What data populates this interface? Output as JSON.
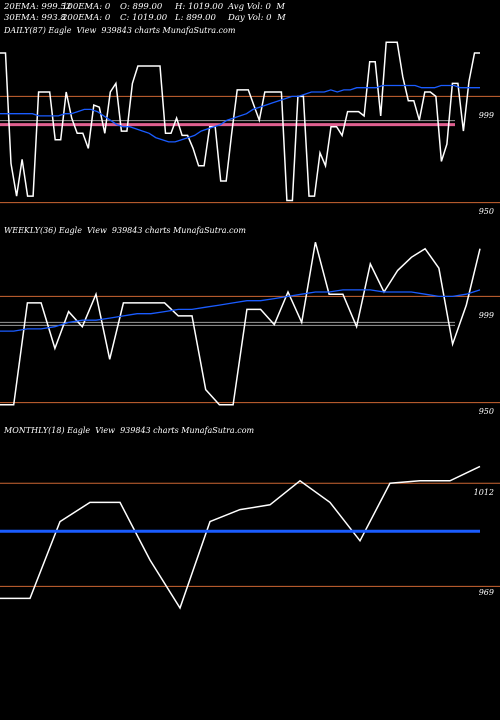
{
  "header": {
    "ema20": "20EMA: 999.52",
    "ema100": "100EMA: 0",
    "open": "O: 899.00",
    "high": "H: 1019.00",
    "avgvol": "Avg Vol: 0  M",
    "ema30": "30EMA: 993.8",
    "ema200": "200EMA: 0",
    "close": "C: 1019.00",
    "low": "L: 899.00",
    "dayvol": "Day Vol: 0  M"
  },
  "colors": {
    "price": "#ffffff",
    "ema": "#1a5cff",
    "ref": "#cc6633",
    "pink": "#e06090",
    "grey": "#999999"
  },
  "chart_data": [
    {
      "type": "line",
      "title": "DAILY(87) Eagle  View  939843 charts MunafaSutra.com",
      "yticks": [
        {
          "label": "999",
          "value": 999
        },
        {
          "label": "950",
          "value": 950
        }
      ],
      "ylim": [
        942,
        1025
      ],
      "series": [
        {
          "role": "price",
          "values": [
            1019,
            1019,
            968,
            953,
            970,
            953,
            953,
            1001,
            1001,
            1001,
            979,
            979,
            1001,
            989,
            982,
            982,
            975,
            995,
            994,
            982,
            1001,
            1005,
            983,
            983,
            1005,
            1013,
            1013,
            1013,
            1013,
            1013,
            982,
            982,
            989,
            981,
            981,
            975,
            967,
            967,
            985,
            985,
            960,
            960,
            982,
            1002,
            1002,
            1002,
            995,
            988,
            1001,
            1001,
            1001,
            1001,
            951,
            951,
            999,
            999,
            953,
            953,
            973,
            967,
            985,
            985,
            981,
            992,
            992,
            992,
            990,
            1015,
            1015,
            990,
            1024,
            1024,
            1024,
            1008,
            997,
            997,
            988,
            1001,
            1001,
            999,
            969,
            977,
            1005,
            1005,
            983,
            1006,
            1019,
            1019
          ]
        },
        {
          "role": "ema",
          "values": [
            991,
            991,
            991,
            991,
            991,
            991,
            990,
            990,
            990,
            990,
            991,
            991,
            992,
            993,
            993,
            992,
            990,
            988,
            986,
            985,
            985,
            984,
            983,
            982,
            980,
            979,
            978,
            978,
            979,
            980,
            981,
            983,
            984,
            985,
            986,
            988,
            989,
            990,
            991,
            993,
            994,
            995,
            996,
            997,
            998,
            999,
            999,
            1000,
            1001,
            1001,
            1001,
            1002,
            1001,
            1002,
            1002,
            1003,
            1003,
            1003,
            1003,
            1004,
            1004,
            1004,
            1004,
            1004,
            1004,
            1003,
            1003,
            1003,
            1004,
            1004,
            1004,
            1003,
            1003,
            1003,
            1003
          ]
        }
      ]
    },
    {
      "type": "line",
      "title": "WEEKLY(36) Eagle  View  939843 charts MunafaSutra.com",
      "yticks": [
        {
          "label": "999",
          "value": 999
        },
        {
          "label": "950",
          "value": 950
        }
      ],
      "ylim": [
        942,
        1025
      ],
      "series": [
        {
          "role": "price",
          "values": [
            949,
            949,
            996,
            996,
            975,
            992,
            985,
            1000,
            970,
            996,
            996,
            996,
            996,
            990,
            990,
            956,
            949,
            949,
            993,
            993,
            986,
            1001,
            987,
            1024,
            1000,
            1000,
            985,
            1014,
            1001,
            1011,
            1017,
            1021,
            1012,
            977,
            995,
            1021
          ]
        },
        {
          "role": "ema",
          "values": [
            983,
            983,
            984,
            984,
            985,
            987,
            988,
            988,
            989,
            990,
            991,
            991,
            992,
            993,
            993,
            994,
            995,
            996,
            997,
            997,
            998,
            999,
            1000,
            1001,
            1001,
            1002,
            1002,
            1002,
            1001,
            1001,
            1001,
            1000,
            999,
            999,
            1000,
            1002
          ]
        }
      ]
    },
    {
      "type": "line",
      "title": "MONTHLY(18) Eagle  View  939843 charts MunafaSutra.com",
      "yticks": [
        {
          "label": "1012",
          "value": 1012
        },
        {
          "label": "969",
          "value": 969
        }
      ],
      "ylim": [
        955,
        1030
      ],
      "series": [
        {
          "role": "price",
          "values": [
            964,
            964,
            996,
            1004,
            1004,
            980,
            960,
            996,
            1001,
            1003,
            1013,
            1004,
            988,
            1012,
            1013,
            1013,
            1019
          ]
        },
        {
          "role": "ema",
          "values": [
            992,
            992,
            992,
            992,
            992,
            992,
            992,
            992,
            992,
            992,
            992,
            992,
            992,
            992,
            992,
            992,
            992
          ]
        }
      ]
    }
  ]
}
